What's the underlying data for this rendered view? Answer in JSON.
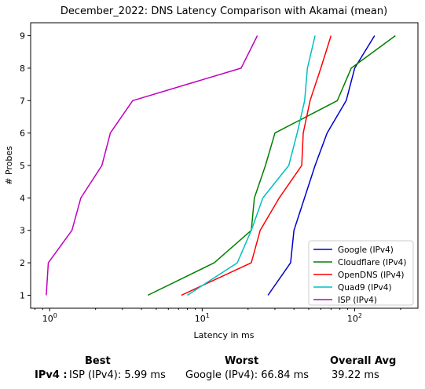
{
  "chart_data": {
    "type": "line",
    "title": "December_2022: DNS Latency Comparison with Akamai (mean)",
    "xlabel": "Latency in ms",
    "ylabel": "# Probes",
    "xscale": "log",
    "xlim": [
      0.75,
      260
    ],
    "ylim": [
      0.6,
      9.4
    ],
    "x_ticks": [
      {
        "value": 1,
        "base": "10",
        "exp": "0"
      },
      {
        "value": 10,
        "base": "10",
        "exp": "1"
      },
      {
        "value": 100,
        "base": "10",
        "exp": "2"
      }
    ],
    "y_ticks": [
      1,
      2,
      3,
      4,
      5,
      6,
      7,
      8,
      9
    ],
    "legend_position": "lower-right",
    "grid": false,
    "series": [
      {
        "name": "Google (IPv4)",
        "color": "#0000cc",
        "points": [
          [
            27,
            1
          ],
          [
            38,
            2
          ],
          [
            40,
            3
          ],
          [
            55,
            5
          ],
          [
            66,
            6
          ],
          [
            88,
            7
          ],
          [
            100,
            8
          ],
          [
            135,
            9
          ]
        ]
      },
      {
        "name": "Cloudflare (IPv4)",
        "color": "#008000",
        "points": [
          [
            4.4,
            1
          ],
          [
            12,
            2
          ],
          [
            21,
            3
          ],
          [
            22,
            4
          ],
          [
            26,
            5
          ],
          [
            30,
            6
          ],
          [
            77,
            7
          ],
          [
            95,
            8
          ],
          [
            185,
            9
          ]
        ]
      },
      {
        "name": "OpenDNS (IPv4)",
        "color": "#ff0000",
        "points": [
          [
            7.3,
            1
          ],
          [
            21,
            2
          ],
          [
            24,
            3
          ],
          [
            32,
            4
          ],
          [
            45,
            5
          ],
          [
            46,
            6
          ],
          [
            51,
            7
          ],
          [
            60,
            8
          ],
          [
            70,
            9
          ]
        ]
      },
      {
        "name": "Quad9 (IPv4)",
        "color": "#00bfbf",
        "points": [
          [
            8,
            1
          ],
          [
            17,
            2
          ],
          [
            21,
            3
          ],
          [
            25,
            4
          ],
          [
            37,
            5
          ],
          [
            42,
            6
          ],
          [
            47,
            7
          ],
          [
            49,
            8
          ],
          [
            55,
            9
          ]
        ]
      },
      {
        "name": "ISP (IPv4)",
        "color": "#bf00bf",
        "points": [
          [
            0.95,
            1
          ],
          [
            0.98,
            2
          ],
          [
            1.4,
            3
          ],
          [
            1.6,
            4
          ],
          [
            2.2,
            5
          ],
          [
            2.5,
            6
          ],
          [
            3.5,
            7
          ],
          [
            18,
            8
          ],
          [
            23,
            9
          ]
        ]
      }
    ]
  },
  "summary": {
    "headers": {
      "best": "Best",
      "worst": "Worst",
      "overall": "Overall Avg"
    },
    "row_label": "IPv4 :",
    "best_value": "ISP (IPv4): 5.99 ms",
    "worst_value": "Google (IPv4): 66.84 ms",
    "overall_value": "39.22 ms"
  }
}
